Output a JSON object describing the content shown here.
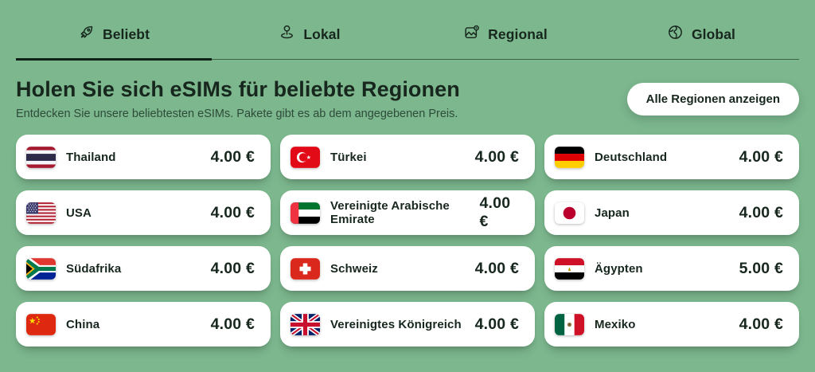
{
  "tabs": [
    {
      "label": "Beliebt",
      "icon": "rocket-icon",
      "active": true
    },
    {
      "label": "Lokal",
      "icon": "map-pin-icon",
      "active": false
    },
    {
      "label": "Regional",
      "icon": "region-map-icon",
      "active": false
    },
    {
      "label": "Global",
      "icon": "globe-icon",
      "active": false
    }
  ],
  "header": {
    "title": "Holen Sie sich eSIMs für beliebte Regionen",
    "subtitle": "Entdecken Sie unsere beliebtesten eSIMs. Pakete gibt es ab dem angegebenen Preis.",
    "button_label": "Alle Regionen anzeigen"
  },
  "cards": [
    {
      "name": "Thailand",
      "price": "4.00 €",
      "flag": "th"
    },
    {
      "name": "Türkei",
      "price": "4.00 €",
      "flag": "tr"
    },
    {
      "name": "Deutschland",
      "price": "4.00 €",
      "flag": "de"
    },
    {
      "name": "USA",
      "price": "4.00 €",
      "flag": "us"
    },
    {
      "name": "Vereinigte Arabische Emirate",
      "price": "4.00 €",
      "flag": "ae"
    },
    {
      "name": "Japan",
      "price": "4.00 €",
      "flag": "jp"
    },
    {
      "name": "Südafrika",
      "price": "4.00 €",
      "flag": "za"
    },
    {
      "name": "Schweiz",
      "price": "4.00 €",
      "flag": "ch"
    },
    {
      "name": "Ägypten",
      "price": "5.00 €",
      "flag": "eg"
    },
    {
      "name": "China",
      "price": "4.00 €",
      "flag": "cn"
    },
    {
      "name": "Vereinigtes Königreich",
      "price": "4.00 €",
      "flag": "gb"
    },
    {
      "name": "Mexiko",
      "price": "4.00 €",
      "flag": "mx"
    }
  ],
  "colors": {
    "background": "#7cb78e",
    "card": "#ffffff",
    "text": "#17271d",
    "active_underline": "#102016"
  }
}
